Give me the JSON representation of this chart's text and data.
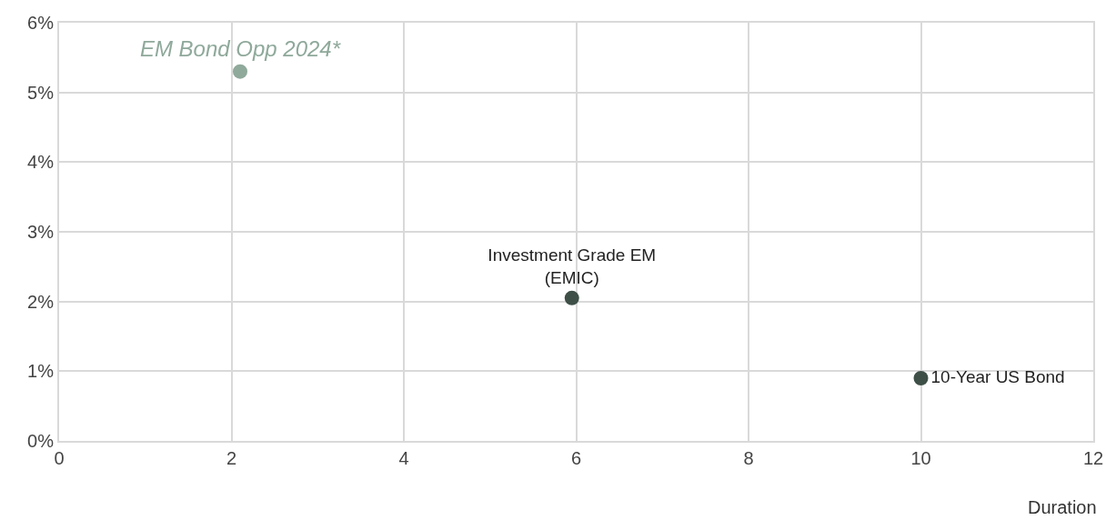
{
  "chart_data": {
    "type": "scatter",
    "xlabel": "Duration",
    "marker": "circle",
    "grid": true,
    "legend": false,
    "xlim": [
      0,
      12
    ],
    "xticks": [
      0,
      2,
      4,
      6,
      8,
      10,
      12
    ],
    "ylim": [
      0,
      6
    ],
    "yticks": [
      {
        "value": 0,
        "label": "0%"
      },
      {
        "value": 1,
        "label": "1%"
      },
      {
        "value": 2,
        "label": "2%"
      },
      {
        "value": 3,
        "label": "3%"
      },
      {
        "value": 4,
        "label": "4%"
      },
      {
        "value": 5,
        "label": "5%"
      },
      {
        "value": 6,
        "label": "6%"
      }
    ],
    "series": [
      {
        "name": "EM Bond Opp 2024*",
        "color": "#8fa99b",
        "x": [
          2.1
        ],
        "values": [
          5.3
        ]
      },
      {
        "name": "Investment Grade EM\n(EMIC)",
        "color": "#3d4f47",
        "x": [
          5.95
        ],
        "values": [
          2.05
        ]
      },
      {
        "name": "10-Year US Bond",
        "color": "#3d4f47",
        "x": [
          10
        ],
        "values": [
          0.9
        ]
      }
    ]
  }
}
